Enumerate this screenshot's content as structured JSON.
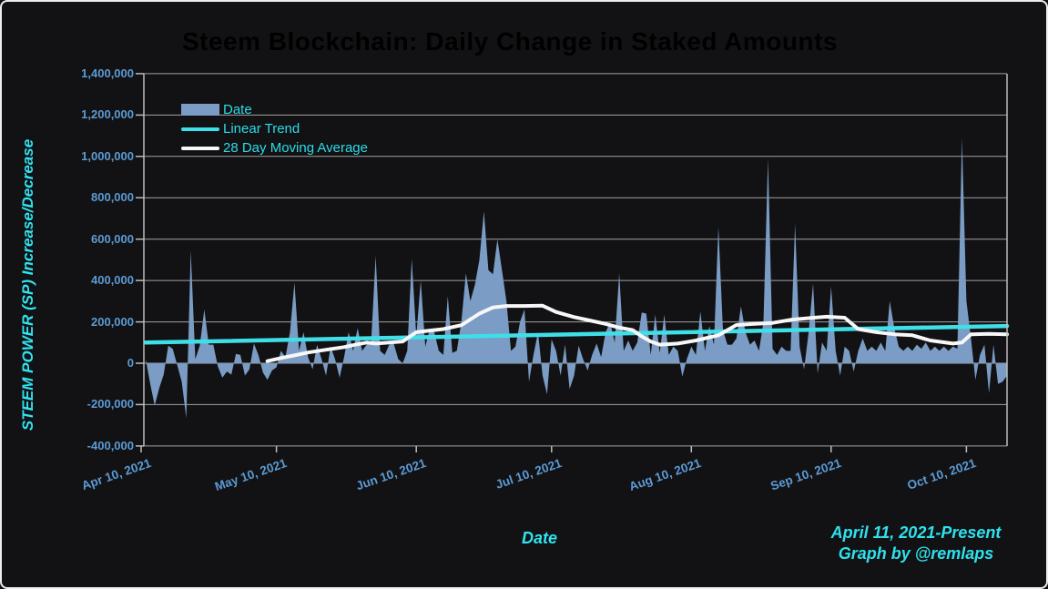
{
  "page": {
    "title": "Steem Blockchain: Daily Change in Staked Amounts",
    "y_axis_label": "STEEM POWER (SP) Increase/Decrease",
    "x_axis_label": "Date",
    "caption_line1": "April 11, 2021-Present",
    "caption_line2": "Graph by @remlaps"
  },
  "legend": {
    "items": [
      {
        "label": "Date",
        "swatch": "area-steelblue"
      },
      {
        "label": "Linear Trend",
        "swatch": "line-cyan"
      },
      {
        "label": "28 Day Moving Average",
        "swatch": "line-white"
      }
    ]
  },
  "colors": {
    "background": "#121214",
    "frame": "#ededed",
    "grid": "#bdbdbd",
    "area_fill": "#7b9cc4",
    "trend_line": "#3fdfe8",
    "moving_average_line": "#f7f7f7",
    "accent_cyan_text": "#31e3f0",
    "tick_label_blue": "#5b9bd5"
  },
  "chart_data": {
    "type": "area",
    "title": "Steem Blockchain: Daily Change in Staked Amounts",
    "xlabel": "Date",
    "ylabel": "STEEM POWER (SP) Increase/Decrease",
    "start_date": "2021-04-11",
    "end_date": "2021-10-19",
    "frequency": "daily",
    "ylim": [
      -400000,
      1400000
    ],
    "grid": true,
    "legend_position": "top-left",
    "y_ticks": [
      {
        "label": "1,400,000",
        "value": 1400000
      },
      {
        "label": "1,200,000",
        "value": 1200000
      },
      {
        "label": "1,000,000",
        "value": 1000000
      },
      {
        "label": "800,000",
        "value": 800000
      },
      {
        "label": "600,000",
        "value": 600000
      },
      {
        "label": "400,000",
        "value": 400000
      },
      {
        "label": "200,000",
        "value": 200000
      },
      {
        "label": "0",
        "value": 0
      },
      {
        "label": "-200,000",
        "value": -200000
      },
      {
        "label": "-400,000",
        "value": -400000
      }
    ],
    "x_ticks": [
      {
        "label": "Apr 10, 2021",
        "day_offset": -1
      },
      {
        "label": "May 10, 2021",
        "day_offset": 29
      },
      {
        "label": "Jun 10, 2021",
        "day_offset": 60
      },
      {
        "label": "Jul 10, 2021",
        "day_offset": 90
      },
      {
        "label": "Aug 10, 2021",
        "day_offset": 121
      },
      {
        "label": "Sep 10, 2021",
        "day_offset": 152
      },
      {
        "label": "Oct 10, 2021",
        "day_offset": 182
      }
    ],
    "series": [
      {
        "name": "Date",
        "type": "area",
        "values": [
          20000,
          -100000,
          -205000,
          -120000,
          -55000,
          85000,
          70000,
          -10000,
          -90000,
          -265000,
          545000,
          20000,
          85000,
          260000,
          90000,
          90000,
          -15000,
          -70000,
          -40000,
          -55000,
          45000,
          40000,
          -60000,
          -30000,
          95000,
          40000,
          -45000,
          -80000,
          -35000,
          -20000,
          60000,
          30000,
          150000,
          390000,
          60000,
          150000,
          30000,
          -30000,
          90000,
          20000,
          -60000,
          80000,
          20000,
          -70000,
          30000,
          150000,
          60000,
          170000,
          60000,
          90000,
          100000,
          520000,
          60000,
          40000,
          90000,
          95000,
          20000,
          0,
          60000,
          505000,
          130000,
          400000,
          80000,
          165000,
          150000,
          60000,
          40000,
          325000,
          50000,
          60000,
          200000,
          435000,
          300000,
          380000,
          500000,
          735000,
          450000,
          430000,
          600000,
          450000,
          300000,
          60000,
          80000,
          200000,
          260000,
          -90000,
          40000,
          150000,
          -60000,
          -150000,
          115000,
          60000,
          -60000,
          90000,
          -125000,
          -60000,
          85000,
          20000,
          -35000,
          40000,
          95000,
          30000,
          150000,
          200000,
          100000,
          435000,
          60000,
          110000,
          60000,
          100000,
          245000,
          240000,
          40000,
          235000,
          50000,
          235000,
          40000,
          80000,
          60000,
          -65000,
          20000,
          80000,
          40000,
          250000,
          60000,
          180000,
          90000,
          660000,
          160000,
          90000,
          90000,
          120000,
          275000,
          150000,
          90000,
          110000,
          60000,
          200000,
          990000,
          70000,
          40000,
          80000,
          60000,
          60000,
          675000,
          80000,
          -30000,
          150000,
          385000,
          -50000,
          100000,
          60000,
          370000,
          60000,
          -60000,
          80000,
          60000,
          -40000,
          60000,
          120000,
          60000,
          80000,
          60000,
          100000,
          60000,
          300000,
          170000,
          80000,
          60000,
          80000,
          60000,
          90000,
          70000,
          100000,
          60000,
          80000,
          60000,
          80000,
          60000,
          80000,
          70000,
          1090000,
          300000,
          120000,
          -80000,
          40000,
          90000,
          -145000,
          90000,
          -100000,
          -90000,
          -60000
        ]
      },
      {
        "name": "Linear Trend",
        "type": "line",
        "points_day_value": [
          [
            0,
            100000
          ],
          [
            191,
            180000
          ]
        ]
      },
      {
        "name": "28 Day Moving Average",
        "type": "line",
        "points_day_value": [
          [
            27,
            10000
          ],
          [
            30,
            25000
          ],
          [
            33,
            38000
          ],
          [
            36,
            52000
          ],
          [
            40,
            65000
          ],
          [
            44,
            78000
          ],
          [
            47,
            92000
          ],
          [
            49,
            100000
          ],
          [
            51,
            95000
          ],
          [
            54,
            100000
          ],
          [
            57,
            105000
          ],
          [
            60,
            150000
          ],
          [
            63,
            158000
          ],
          [
            66,
            165000
          ],
          [
            70,
            184000
          ],
          [
            74,
            240000
          ],
          [
            77,
            270000
          ],
          [
            80,
            277000
          ],
          [
            84,
            277000
          ],
          [
            88,
            278000
          ],
          [
            91,
            248000
          ],
          [
            95,
            223000
          ],
          [
            98,
            209000
          ],
          [
            102,
            190000
          ],
          [
            105,
            172000
          ],
          [
            108,
            160000
          ],
          [
            110,
            130000
          ],
          [
            112,
            105000
          ],
          [
            114,
            90000
          ],
          [
            118,
            95000
          ],
          [
            122,
            110000
          ],
          [
            127,
            135000
          ],
          [
            131,
            185000
          ],
          [
            135,
            190000
          ],
          [
            139,
            195000
          ],
          [
            143,
            210000
          ],
          [
            147,
            218000
          ],
          [
            151,
            225000
          ],
          [
            155,
            220000
          ],
          [
            158,
            165000
          ],
          [
            162,
            150000
          ],
          [
            166,
            140000
          ],
          [
            170,
            135000
          ],
          [
            174,
            110000
          ],
          [
            179,
            95000
          ],
          [
            181,
            100000
          ],
          [
            183,
            140000
          ],
          [
            187,
            142000
          ],
          [
            191,
            140000
          ]
        ]
      }
    ]
  }
}
